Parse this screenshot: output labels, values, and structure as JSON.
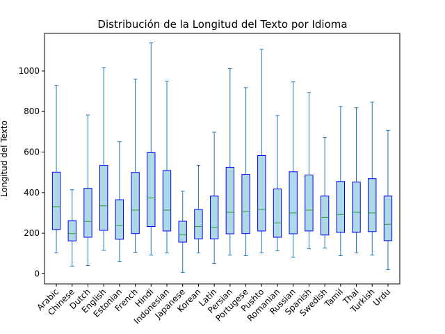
{
  "chart_data": {
    "type": "boxplot",
    "title": "Distribución de la Longitud del Texto por Idioma",
    "xlabel": "",
    "ylabel": "Longitud del Texto",
    "ylim": [
      -50,
      1185
    ],
    "yticks": [
      0,
      200,
      400,
      600,
      800,
      1000
    ],
    "grid": false,
    "colors": {
      "box_fill": "#add8e6",
      "box_edge": "#0000ff",
      "whisker": "#1f77b4",
      "median": "#2ca02c"
    },
    "categories": [
      "Arabic",
      "Chinese",
      "Dutch",
      "English",
      "Estonian",
      "French",
      "Hindi",
      "Indonesian",
      "Japanese",
      "Korean",
      "Latin",
      "Persian",
      "Portugese",
      "Pushto",
      "Romanian",
      "Russian",
      "Spanish",
      "Swedish",
      "Tamil",
      "Thai",
      "Turkish",
      "Urdu"
    ],
    "boxes": [
      {
        "min": 103,
        "q1": 218,
        "median": 331,
        "q3": 501,
        "max": 929
      },
      {
        "min": 37,
        "q1": 162,
        "median": 198,
        "q3": 262,
        "max": 414
      },
      {
        "min": 41,
        "q1": 180,
        "median": 258,
        "q3": 421,
        "max": 783
      },
      {
        "min": 116,
        "q1": 214,
        "median": 335,
        "q3": 535,
        "max": 1015
      },
      {
        "min": 61,
        "q1": 170,
        "median": 237,
        "q3": 365,
        "max": 651
      },
      {
        "min": 106,
        "q1": 198,
        "median": 314,
        "q3": 500,
        "max": 959
      },
      {
        "min": 92,
        "q1": 233,
        "median": 374,
        "q3": 597,
        "max": 1138
      },
      {
        "min": 103,
        "q1": 211,
        "median": 314,
        "q3": 509,
        "max": 950
      },
      {
        "min": 7,
        "q1": 156,
        "median": 193,
        "q3": 259,
        "max": 407
      },
      {
        "min": 103,
        "q1": 172,
        "median": 233,
        "q3": 317,
        "max": 535
      },
      {
        "min": 51,
        "q1": 172,
        "median": 230,
        "q3": 383,
        "max": 698
      },
      {
        "min": 92,
        "q1": 197,
        "median": 303,
        "q3": 525,
        "max": 1012
      },
      {
        "min": 89,
        "q1": 198,
        "median": 306,
        "q3": 490,
        "max": 918
      },
      {
        "min": 103,
        "q1": 211,
        "median": 317,
        "q3": 583,
        "max": 1107
      },
      {
        "min": 113,
        "q1": 180,
        "median": 251,
        "q3": 418,
        "max": 780
      },
      {
        "min": 82,
        "q1": 197,
        "median": 300,
        "q3": 503,
        "max": 946
      },
      {
        "min": 123,
        "q1": 211,
        "median": 314,
        "q3": 487,
        "max": 894
      },
      {
        "min": 127,
        "q1": 191,
        "median": 278,
        "q3": 383,
        "max": 672
      },
      {
        "min": 89,
        "q1": 204,
        "median": 292,
        "q3": 455,
        "max": 825
      },
      {
        "min": 103,
        "q1": 204,
        "median": 303,
        "q3": 452,
        "max": 819
      },
      {
        "min": 92,
        "q1": 208,
        "median": 300,
        "q3": 469,
        "max": 846
      },
      {
        "min": 20,
        "q1": 163,
        "median": 244,
        "q3": 383,
        "max": 707
      }
    ]
  }
}
